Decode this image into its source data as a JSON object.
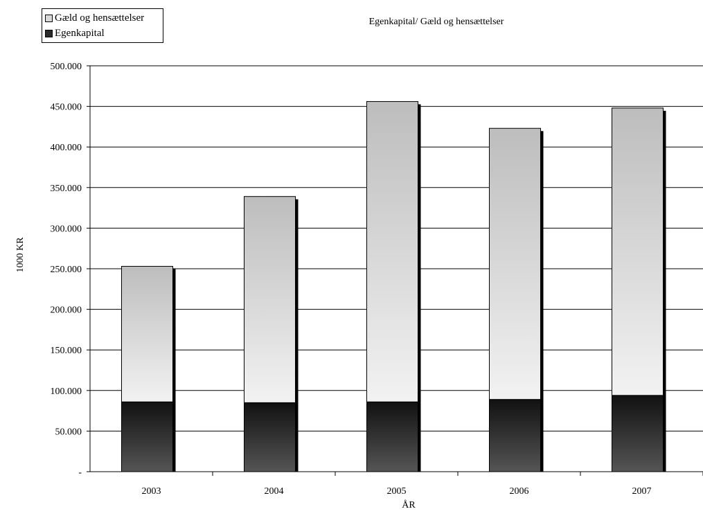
{
  "chart_data": {
    "type": "bar",
    "stacked": true,
    "title": "Egenkapital/ Gæld og hensættelser",
    "xlabel": "ÅR",
    "ylabel": "1000 KR",
    "categories": [
      "2003",
      "2004",
      "2005",
      "2006",
      "2007"
    ],
    "ylim": [
      0,
      500000
    ],
    "yticks": [
      "-",
      "50.000",
      "100.000",
      "150.000",
      "200.000",
      "250.000",
      "300.000",
      "350.000",
      "400.000",
      "450.000",
      "500.000"
    ],
    "grid": true,
    "legend_position": "top-left",
    "series": [
      {
        "name": "Egenkapital",
        "values": [
          86000,
          85000,
          86000,
          89000,
          94000
        ],
        "color": "#2a2a2a"
      },
      {
        "name": "Gæld og hensættelser",
        "values": [
          167000,
          254000,
          370000,
          334000,
          354000
        ],
        "color": "#d0d0d0"
      }
    ]
  }
}
